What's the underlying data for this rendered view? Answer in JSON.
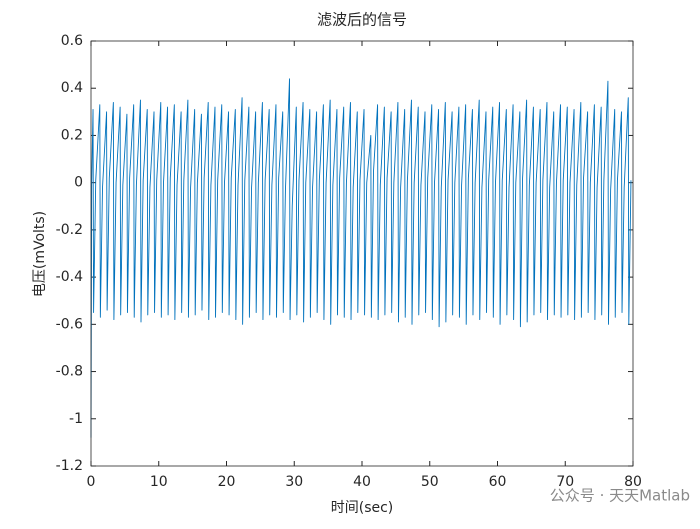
{
  "chart_data": {
    "type": "line",
    "title": "滤波后的信号",
    "xlabel": "时间(sec)",
    "ylabel": "电压(mVolts)",
    "watermark": "公众号 · 天天Matlab",
    "color": "#0072bd",
    "xlim": [
      0,
      80
    ],
    "xticks": [
      0,
      10,
      20,
      30,
      40,
      50,
      60,
      70,
      80
    ],
    "ylim": [
      -1.2,
      0.6
    ],
    "yticks": [
      -1.2,
      -1,
      -0.8,
      -0.6,
      -0.4,
      -0.2,
      0,
      0.2,
      0.4,
      0.6
    ],
    "grid": false,
    "x": [
      0,
      0.1,
      0.3,
      0.38,
      0.7,
      1.3,
      1.38,
      1.7,
      2.3,
      2.38,
      2.7,
      3.3,
      3.38,
      3.7,
      4.3,
      4.38,
      4.7,
      5.3,
      5.38,
      5.7,
      6.3,
      6.38,
      6.7,
      7.3,
      7.38,
      7.7,
      8.3,
      8.38,
      8.7,
      9.3,
      9.38,
      9.7,
      10.3,
      10.38,
      10.7,
      11.3,
      11.38,
      11.7,
      12.3,
      12.38,
      12.7,
      13.3,
      13.38,
      13.7,
      14.3,
      14.38,
      14.7,
      15.3,
      15.38,
      15.7,
      16.3,
      16.38,
      16.7,
      17.3,
      17.38,
      17.7,
      18.3,
      18.38,
      18.7,
      19.3,
      19.38,
      19.7,
      20.3,
      20.38,
      20.7,
      21.3,
      21.38,
      21.7,
      22.3,
      22.38,
      22.7,
      23.3,
      23.38,
      23.7,
      24.3,
      24.38,
      24.7,
      25.3,
      25.38,
      25.7,
      26.3,
      26.38,
      26.7,
      27.3,
      27.38,
      27.7,
      28.3,
      28.38,
      28.7,
      29.3,
      29.38,
      29.7,
      30.3,
      30.38,
      30.7,
      31.3,
      31.38,
      31.7,
      32.3,
      32.38,
      32.7,
      33.3,
      33.38,
      33.7,
      34.3,
      34.38,
      34.7,
      35.3,
      35.38,
      35.7,
      36.3,
      36.38,
      36.7,
      37.3,
      37.38,
      37.7,
      38.3,
      38.38,
      38.7,
      39.3,
      39.38,
      39.7,
      40.3,
      40.38,
      40.7,
      41.3,
      41.38,
      41.7,
      42.3,
      42.38,
      42.7,
      43.3,
      43.38,
      43.7,
      44.3,
      44.38,
      44.7,
      45.3,
      45.38,
      45.7,
      46.3,
      46.38,
      46.7,
      47.3,
      47.38,
      47.7,
      48.3,
      48.38,
      48.7,
      49.3,
      49.38,
      49.7,
      50.3,
      50.38,
      50.7,
      51.3,
      51.38,
      51.7,
      52.3,
      52.38,
      52.7,
      53.3,
      53.38,
      53.7,
      54.3,
      54.38,
      54.7,
      55.3,
      55.38,
      55.7,
      56.3,
      56.38,
      56.7,
      57.3,
      57.38,
      57.7,
      58.3,
      58.38,
      58.7,
      59.3,
      59.38,
      59.7,
      60.3,
      60.38,
      60.7,
      61.3,
      61.38,
      61.7,
      62.3,
      62.38,
      62.7,
      63.3,
      63.38,
      63.7,
      64.3,
      64.38,
      64.7,
      65.3,
      65.38,
      65.7,
      66.3,
      66.38,
      66.7,
      67.3,
      67.38,
      67.7,
      68.3,
      68.38,
      68.7,
      69.3,
      69.38,
      69.7,
      70.3,
      70.38,
      70.7,
      71.3,
      71.38,
      71.7,
      72.3,
      72.38,
      72.7,
      73.3,
      73.38,
      73.7,
      74.3,
      74.38,
      74.7,
      75.3,
      75.38,
      75.7,
      76.3,
      76.38,
      76.7,
      77.3,
      77.38,
      77.7,
      78.3,
      78.38,
      78.7,
      79.3,
      79.38,
      79.7
    ],
    "values": [
      -1.08,
      0,
      0.31,
      -0.55,
      0.01,
      0.33,
      -0.57,
      -0.02,
      0.3,
      -0.54,
      0.02,
      0.34,
      -0.58,
      0,
      0.32,
      -0.56,
      -0.01,
      0.29,
      -0.55,
      0.02,
      0.33,
      -0.57,
      -0.01,
      0.35,
      -0.59,
      0.01,
      0.31,
      -0.56,
      -0.02,
      0.3,
      -0.55,
      0.01,
      0.34,
      -0.57,
      0,
      0.32,
      -0.56,
      0.02,
      0.33,
      -0.58,
      -0.01,
      0.3,
      -0.55,
      0.01,
      0.35,
      -0.57,
      -0.02,
      0.31,
      -0.56,
      0,
      0.29,
      -0.54,
      0.02,
      0.34,
      -0.58,
      -0.01,
      0.32,
      -0.57,
      0.01,
      0.33,
      -0.55,
      0,
      0.3,
      -0.56,
      0.02,
      0.31,
      -0.58,
      -0.01,
      0.36,
      -0.6,
      0.01,
      0.32,
      -0.57,
      -0.02,
      0.3,
      -0.55,
      0,
      0.34,
      -0.58,
      0.01,
      0.31,
      -0.56,
      -0.01,
      0.33,
      -0.57,
      0.02,
      0.3,
      -0.55,
      -0.03,
      0.44,
      -0.58,
      -0.1,
      0.32,
      -0.56,
      0.01,
      0.34,
      -0.59,
      0,
      0.31,
      -0.57,
      -0.02,
      0.3,
      -0.55,
      0.01,
      0.33,
      -0.58,
      0,
      0.35,
      -0.6,
      -0.01,
      0.31,
      -0.56,
      0.02,
      0.32,
      -0.57,
      0,
      0.34,
      -0.58,
      -0.02,
      0.3,
      -0.55,
      0.01,
      0.31,
      -0.56,
      0,
      0.2,
      -0.57,
      0.05,
      0.33,
      -0.58,
      -0.01,
      0.32,
      -0.56,
      0.02,
      0.3,
      -0.55,
      0,
      0.34,
      -0.59,
      -0.02,
      0.31,
      -0.57,
      0.01,
      0.35,
      -0.6,
      0,
      0.32,
      -0.56,
      -0.01,
      0.3,
      -0.55,
      0.02,
      0.33,
      -0.58,
      0,
      0.31,
      -0.61,
      -0.02,
      0.34,
      -0.59,
      0.01,
      0.3,
      -0.56,
      0,
      0.32,
      -0.57,
      -0.01,
      0.33,
      -0.6,
      0.02,
      0.31,
      -0.56,
      0,
      0.35,
      -0.58,
      -0.02,
      0.3,
      -0.55,
      0.01,
      0.32,
      -0.57,
      0,
      0.34,
      -0.6,
      0.01,
      0.31,
      -0.56,
      -0.02,
      0.33,
      -0.58,
      0,
      0.3,
      -0.61,
      0.02,
      0.35,
      -0.59,
      -0.01,
      0.32,
      -0.56,
      0,
      0.31,
      -0.55,
      0.01,
      0.34,
      -0.58,
      -0.02,
      0.3,
      -0.56,
      0,
      0.33,
      -0.57,
      0.01,
      0.32,
      -0.56,
      0,
      0.31,
      -0.58,
      -0.01,
      0.34,
      -0.57,
      0.02,
      0.3,
      -0.55,
      0,
      0.33,
      -0.58,
      -0.02,
      0.32,
      -0.56,
      0.01,
      0.43,
      -0.6,
      -0.03,
      0.31,
      -0.57,
      0.01,
      0.3,
      -0.55,
      -0.02,
      0.36,
      -0.6,
      0.01
    ]
  }
}
